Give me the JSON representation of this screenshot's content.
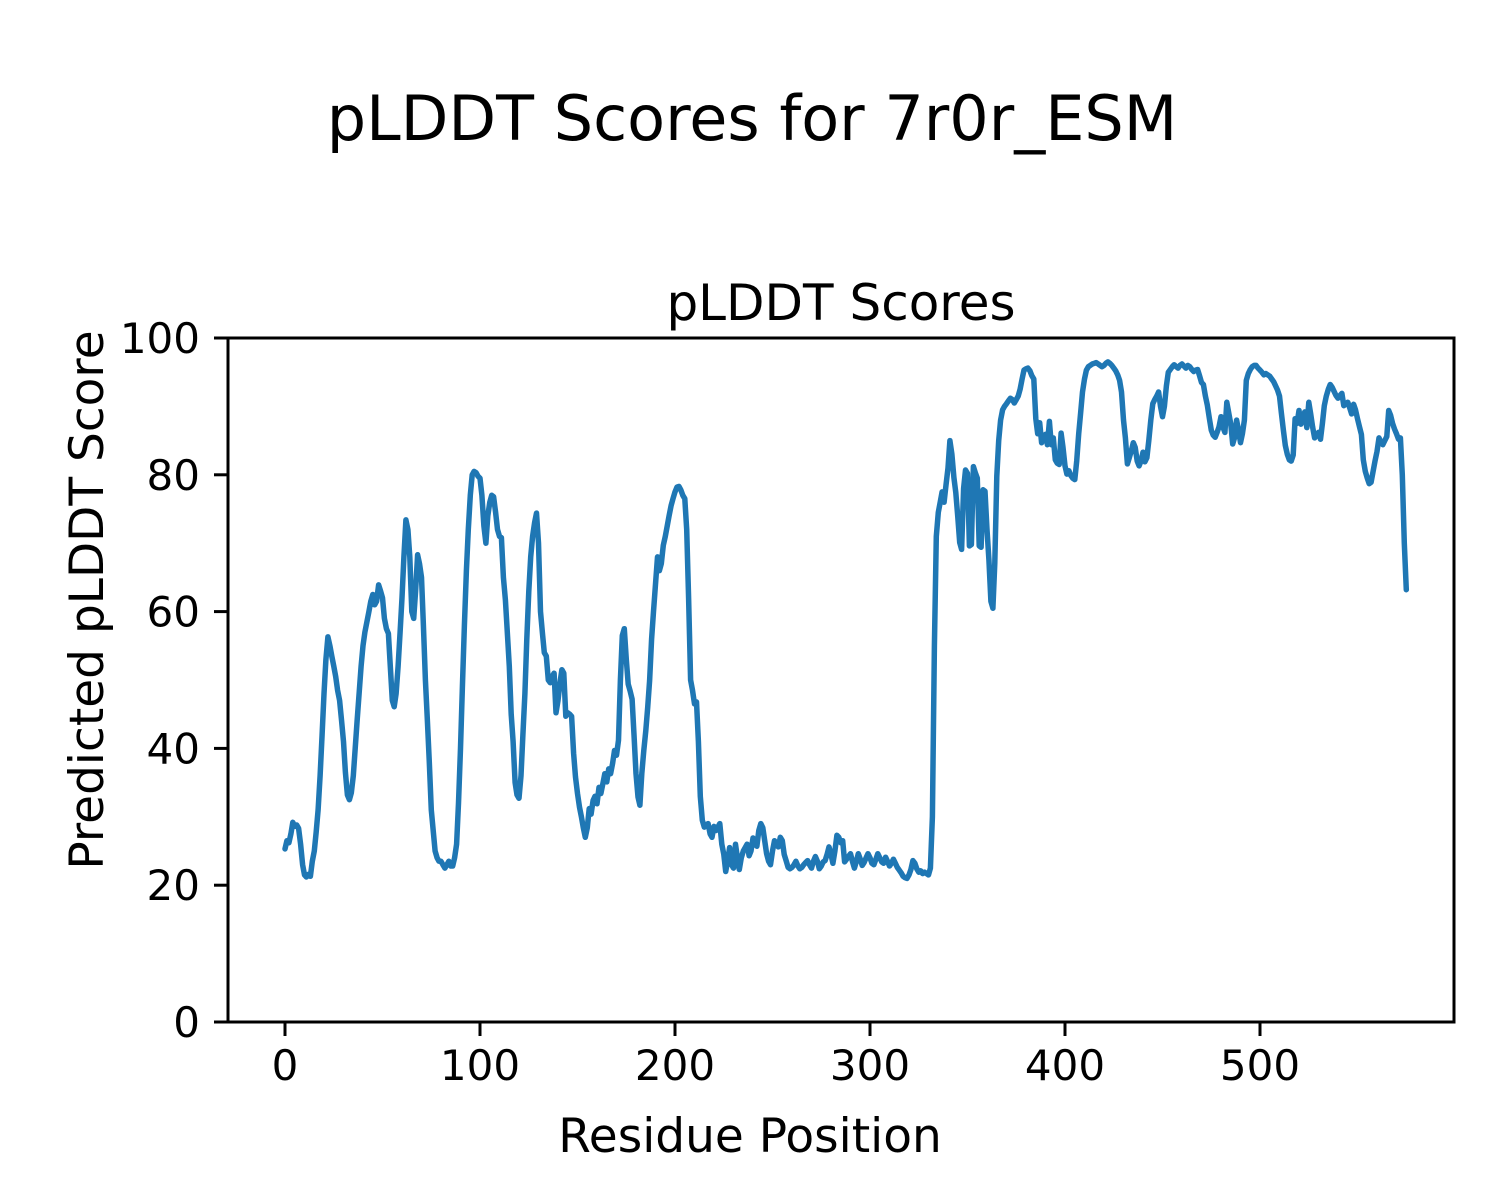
{
  "figure": {
    "suptitle": "pLDDT Scores for 7r0r_ESM"
  },
  "chart_data": {
    "type": "line",
    "title": "pLDDT Scores",
    "suptitle": "pLDDT Scores for 7r0r_ESM",
    "xlabel": "Residue Position",
    "ylabel": "Predicted pLDDT Score",
    "x_ticks": [
      0,
      100,
      200,
      300,
      400,
      500
    ],
    "y_ticks": [
      0,
      20,
      40,
      60,
      80,
      100
    ],
    "ylim": [
      0,
      100
    ],
    "xlim": [
      -29,
      601
    ],
    "grid": false,
    "legend": "none",
    "line_color": "#1f77b4",
    "x_start": 0,
    "x_step": 1,
    "series": [
      {
        "name": "pLDDT",
        "values": [
          25.3,
          26.5,
          26.2,
          27.5,
          29.2,
          28.6,
          28.8,
          28.3,
          26.0,
          23.0,
          21.5,
          21.2,
          21.6,
          21.3,
          23.5,
          25.0,
          27.8,
          31.0,
          36.0,
          42.0,
          48.0,
          53.0,
          56.3,
          55.0,
          53.5,
          52.0,
          50.5,
          48.5,
          47.0,
          44.0,
          41.0,
          36.5,
          33.2,
          32.5,
          33.5,
          36.0,
          40.0,
          44.0,
          48.0,
          52.0,
          55.0,
          57.0,
          58.5,
          60.0,
          61.5,
          62.5,
          61.0,
          61.5,
          63.9,
          63.0,
          62.0,
          59.0,
          57.5,
          56.8,
          52.0,
          47.0,
          46.1,
          48.0,
          52.0,
          57.0,
          62.0,
          68.0,
          73.4,
          72.0,
          68.0,
          60.0,
          59.0,
          63.0,
          68.3,
          67.0,
          65.0,
          58.0,
          50.0,
          44.0,
          38.0,
          31.0,
          28.0,
          25.0,
          24.0,
          23.5,
          23.5,
          23.0,
          22.5,
          23.0,
          23.5,
          22.8,
          22.8,
          24.0,
          26.0,
          32.0,
          40.0,
          49.0,
          58.0,
          66.0,
          72.0,
          77.0,
          80.0,
          80.5,
          80.3,
          79.8,
          79.5,
          77.0,
          72.5,
          70.0,
          74.0,
          76.0,
          77.0,
          76.8,
          74.5,
          72.0,
          71.0,
          70.8,
          65.0,
          61.7,
          57.0,
          52.0,
          45.0,
          41.0,
          35.0,
          33.2,
          32.7,
          36.0,
          42.0,
          48.0,
          56.0,
          63.0,
          68.0,
          71.0,
          73.0,
          74.4,
          70.0,
          60.0,
          56.9,
          54.0,
          53.5,
          50.0,
          49.6,
          50.5,
          51.0,
          45.2,
          47.0,
          49.6,
          51.5,
          51.0,
          44.7,
          45.2,
          45.0,
          44.7,
          39.3,
          35.8,
          33.4,
          31.4,
          30.0,
          28.4,
          27.0,
          28.4,
          31.2,
          30.4,
          32.4,
          33.0,
          31.9,
          34.3,
          33.4,
          34.8,
          36.3,
          35.1,
          37.0,
          36.3,
          37.8,
          39.7,
          39.0,
          41.2,
          50.0,
          56.5,
          57.5,
          53.0,
          49.4,
          48.4,
          47.2,
          42.0,
          36.3,
          32.9,
          31.7,
          36.3,
          39.7,
          42.6,
          46.0,
          49.9,
          56.0,
          60.0,
          64.0,
          68.0,
          66.0,
          67.0,
          69.7,
          71.0,
          72.5,
          74.0,
          75.5,
          76.5,
          77.5,
          78.2,
          78.3,
          77.8,
          77.0,
          76.5,
          72.0,
          62.0,
          50.0,
          48.5,
          46.5,
          46.8,
          41.0,
          33.0,
          29.5,
          28.5,
          28.8,
          29.0,
          27.5,
          27.0,
          28.6,
          28.0,
          28.5,
          29.0,
          26.0,
          24.5,
          22.0,
          23.5,
          25.5,
          23.0,
          22.5,
          26.0,
          24.0,
          22.3,
          24.0,
          25.0,
          25.5,
          26.0,
          24.3,
          25.0,
          26.9,
          26.0,
          25.7,
          28.0,
          29.0,
          28.4,
          26.5,
          24.6,
          23.5,
          23.0,
          25.0,
          26.5,
          26.0,
          25.6,
          27.0,
          26.5,
          24.5,
          23.6,
          22.6,
          22.4,
          22.6,
          23.0,
          23.5,
          22.8,
          22.4,
          22.6,
          23.0,
          23.3,
          23.6,
          23.0,
          22.5,
          23.5,
          24.2,
          23.5,
          22.4,
          22.8,
          23.4,
          23.6,
          24.5,
          25.6,
          24.5,
          23.2,
          25.0,
          27.3,
          27.0,
          26.2,
          26.5,
          23.4,
          23.8,
          24.2,
          24.6,
          23.5,
          22.5,
          23.5,
          24.6,
          23.8,
          22.9,
          23.3,
          24.0,
          24.6,
          24.0,
          23.2,
          23.0,
          23.8,
          24.6,
          24.0,
          23.4,
          23.2,
          24.1,
          23.5,
          22.8,
          23.2,
          23.8,
          23.2,
          22.6,
          22.2,
          21.8,
          21.3,
          21.1,
          21.0,
          21.5,
          22.3,
          23.6,
          23.2,
          22.4,
          21.9,
          22.1,
          21.7,
          21.9,
          21.7,
          21.5,
          22.5,
          30.0,
          55.0,
          71.0,
          74.5,
          76.0,
          77.5,
          76.0,
          78.5,
          81.0,
          85.0,
          83.0,
          79.6,
          77.4,
          73.8,
          70.1,
          69.1,
          78.0,
          80.7,
          80.2,
          69.6,
          69.8,
          81.2,
          80.3,
          79.5,
          69.6,
          69.4,
          77.8,
          77.6,
          72.0,
          67.6,
          61.5,
          60.5,
          67.1,
          79.8,
          85.0,
          88.0,
          89.5,
          90.0,
          90.4,
          90.8,
          91.2,
          91.0,
          90.5,
          91.0,
          91.5,
          92.5,
          94.0,
          95.3,
          95.5,
          95.6,
          95.2,
          94.5,
          94.0,
          88.2,
          86.0,
          87.6,
          84.7,
          85.5,
          85.9,
          84.4,
          87.8,
          84.4,
          85.4,
          82.2,
          81.7,
          81.5,
          86.1,
          84.0,
          81.3,
          80.1,
          80.6,
          79.9,
          79.5,
          79.3,
          82.0,
          86.0,
          89.0,
          92.1,
          94.0,
          95.3,
          95.8,
          96.0,
          96.2,
          96.3,
          96.4,
          96.2,
          96.0,
          95.8,
          96.0,
          96.3,
          96.5,
          96.3,
          96.0,
          95.6,
          95.2,
          94.6,
          93.8,
          92.1,
          88.0,
          85.4,
          81.6,
          82.5,
          83.5,
          84.7,
          84.0,
          82.0,
          81.3,
          82.0,
          83.3,
          81.9,
          82.5,
          85.0,
          88.0,
          90.4,
          91.0,
          91.5,
          92.1,
          90.0,
          88.5,
          90.0,
          93.0,
          95.0,
          95.4,
          95.8,
          96.1,
          95.8,
          95.6,
          96.0,
          96.2,
          95.9,
          95.6,
          96.0,
          95.8,
          95.4,
          95.1,
          95.3,
          95.4,
          94.5,
          93.5,
          93.2,
          91.5,
          90.2,
          88.3,
          86.5,
          85.8,
          85.5,
          86.2,
          87.0,
          88.5,
          87.0,
          86.2,
          90.6,
          89.0,
          87.4,
          84.5,
          85.5,
          88.0,
          86.5,
          84.7,
          86.0,
          88.0,
          93.8,
          94.8,
          95.4,
          95.8,
          96.0,
          96.0,
          95.6,
          95.3,
          95.0,
          94.6,
          94.8,
          94.6,
          94.4,
          94.0,
          93.6,
          93.0,
          92.4,
          91.5,
          89.0,
          86.5,
          84.3,
          83.0,
          82.2,
          82.0,
          82.9,
          88.2,
          87.5,
          89.4,
          87.4,
          88.5,
          89.2,
          86.9,
          90.6,
          88.9,
          87.0,
          85.4,
          85.8,
          86.2,
          85.2,
          87.5,
          90.1,
          91.5,
          92.5,
          93.2,
          92.8,
          92.2,
          91.6,
          91.2,
          91.6,
          91.9,
          90.1,
          90.4,
          90.6,
          89.8,
          88.9,
          90.3,
          89.5,
          88.2,
          87.0,
          85.9,
          82.2,
          80.5,
          79.5,
          78.7,
          78.9,
          80.5,
          82.0,
          83.4,
          85.4,
          84.8,
          84.4,
          85.0,
          85.6,
          89.4,
          88.7,
          87.5,
          86.7,
          86.0,
          85.2,
          85.4,
          80.0,
          70.0,
          63.2
        ]
      }
    ]
  }
}
